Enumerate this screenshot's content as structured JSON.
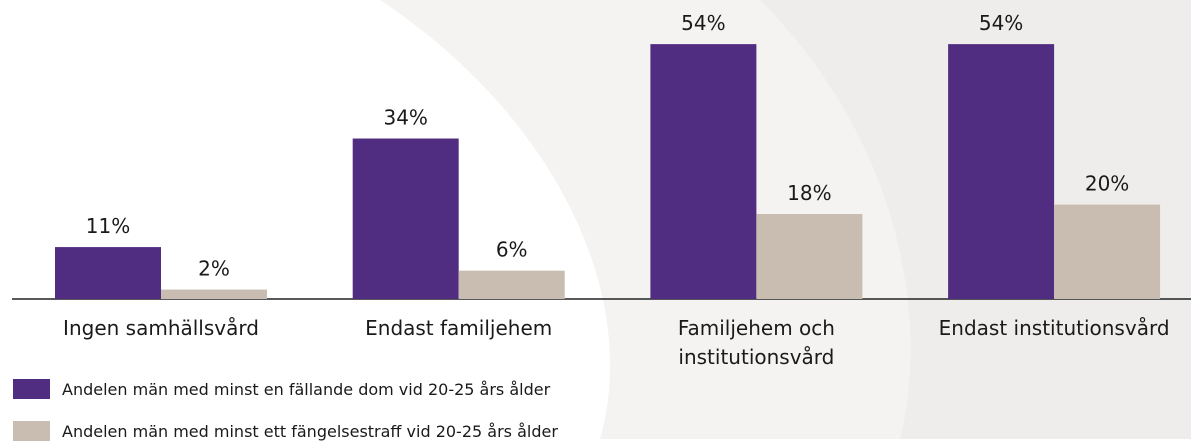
{
  "chart_data": {
    "type": "bar",
    "categories": [
      "Ingen samhällsvård",
      "Endast familjehem",
      "Familjehem och\ninstitutionsvård",
      "Endast institutionsvård"
    ],
    "series": [
      {
        "name": "Andelen män med minst en fällande dom vid 20-25 års ålder",
        "color": "#512d81",
        "values": [
          11,
          34,
          54,
          54
        ],
        "value_labels": [
          "11%",
          "34%",
          "54%",
          "54%"
        ]
      },
      {
        "name": "Andelen män med minst ett fängelsestraff vid 20-25 års ålder",
        "color": "#c8bdb0",
        "values": [
          2,
          6,
          18,
          20
        ],
        "value_labels": [
          "2%",
          "6%",
          "18%",
          "20%"
        ]
      }
    ]
  }
}
